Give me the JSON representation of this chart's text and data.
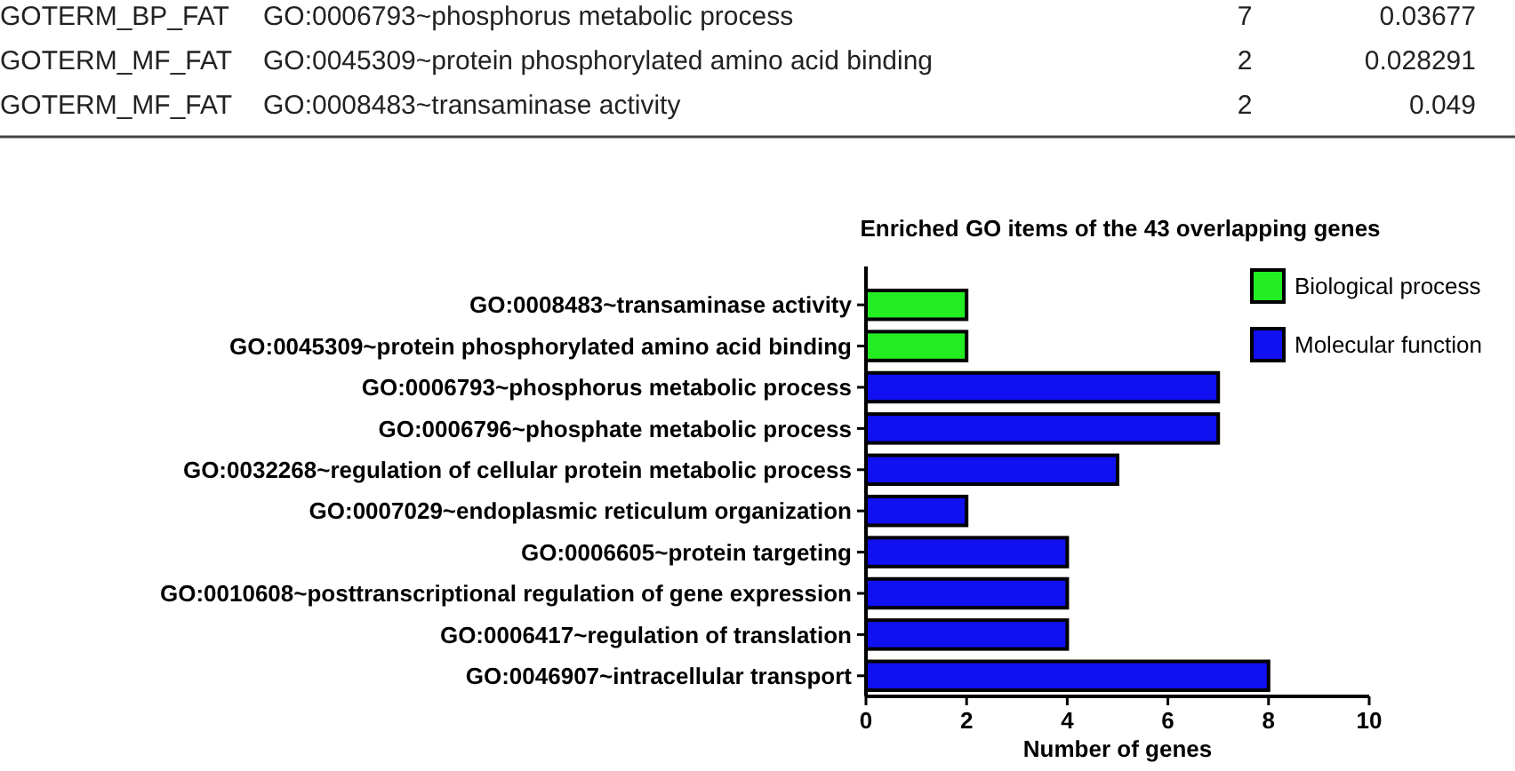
{
  "chart_data": {
    "type": "bar",
    "orientation": "horizontal",
    "title": "Enriched GO items of the 43 overlapping genes",
    "xlabel": "Number of genes",
    "categories": [
      "GO:0008483~transaminase activity",
      "GO:0045309~protein phosphorylated amino acid binding",
      "GO:0006793~phosphorus metabolic process",
      "GO:0006796~phosphate metabolic process",
      "GO:0032268~regulation of cellular protein metabolic process",
      "GO:0007029~endoplasmic reticulum organization",
      "GO:0006605~protein targeting",
      "GO:0010608~posttranscriptional regulation of gene expression",
      "GO:0006417~regulation of translation",
      "GO:0046907~intracellular transport"
    ],
    "series": [
      {
        "name": "Biological process",
        "color": "#22ee22",
        "values": [
          2,
          2,
          null,
          null,
          null,
          null,
          null,
          null,
          null,
          null
        ]
      },
      {
        "name": "Molecular function",
        "color": "#1010f0",
        "values": [
          null,
          null,
          7,
          7,
          5,
          2,
          4,
          4,
          4,
          8
        ]
      }
    ],
    "xlim": [
      0,
      10
    ],
    "xticks": [
      0,
      2,
      4,
      6,
      8,
      10
    ],
    "legend": "top right",
    "annotations": [
      "GOTERM_BP_FAT",
      "GO:0006793~phosphorus metabolic process",
      "7",
      "0.03677",
      "GOTERM_MF_FAT",
      "GO:0045309~protein phosphorylated amino acid binding",
      "2",
      "0.028291",
      "GOTERM_MF_FAT",
      "GO:0008483~transaminase activity",
      "2",
      "0.049"
    ]
  }
}
